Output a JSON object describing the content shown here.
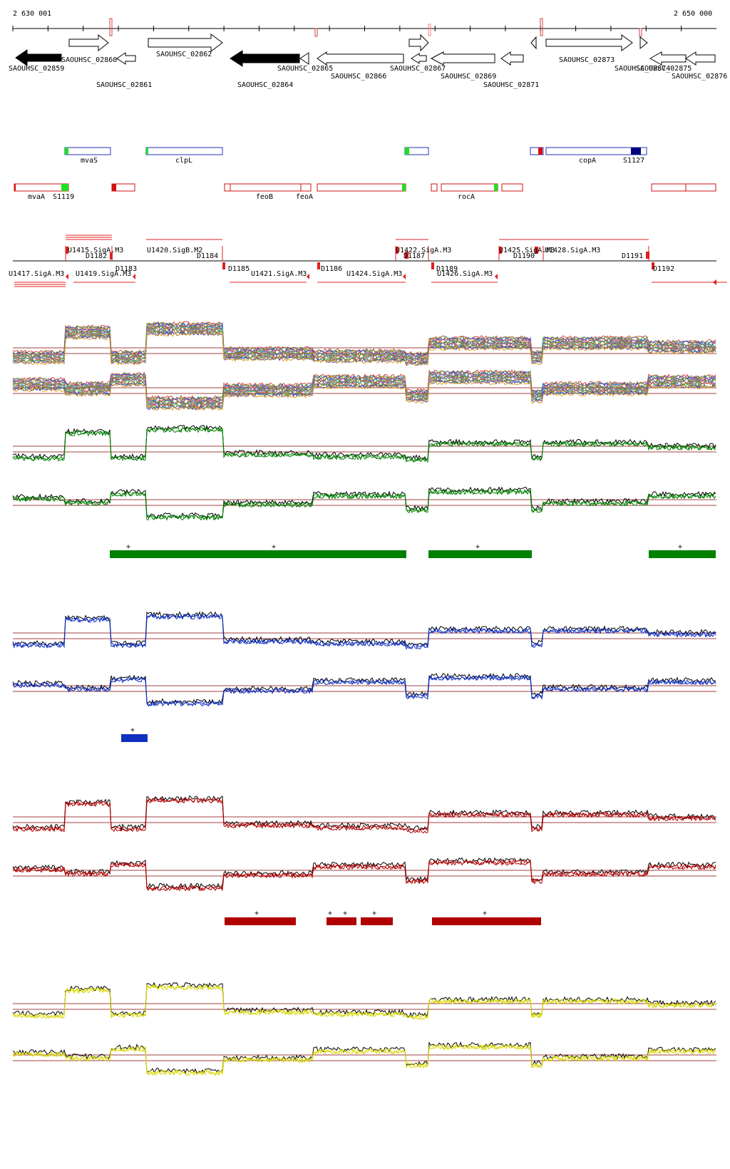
{
  "ruler": {
    "start_label": "2 630 001",
    "end_label": "2 650 000"
  },
  "genes_top": [
    "SAOUHSC_02860",
    "SAOUHSC_02862",
    "SAOUHSC_02865",
    "SAOUHSC_02867",
    "SAOUHSC_02873",
    "SAOUHSC_02875"
  ],
  "genes_mid": [
    "SAOUHSC_02859",
    "SAOUHSC_02866",
    "SAOUHSC_02869",
    "SAOUHSC_02874",
    "SAOUHSC_02876"
  ],
  "genes_low": [
    "SAOUHSC_02861",
    "SAOUHSC_02864",
    "SAOUHSC_02871"
  ],
  "features_plus": [
    "mvaS",
    "clpL",
    "copA",
    "S1127"
  ],
  "features_minus": [
    "mvaA",
    "S1119",
    "feoB",
    "feoA",
    "rocA"
  ],
  "tu_top": [
    "U1415.SigA.M3",
    "U1420.SigB.M2",
    "U1422.SigA.M3",
    "U1425.SigA.M3",
    "U1428.SigA.M3"
  ],
  "tu_bottom": [
    "U1417.SigA.M3",
    "U1419.SigA.M3",
    "U1421.SigA.M3",
    "U1424.SigA.M3",
    "U1426.SigA.M3"
  ],
  "d_labels": [
    "D1182",
    "D1183",
    "D1184",
    "D1185",
    "D1186",
    "D1187",
    "D1189",
    "D1190",
    "D1191",
    "D1192"
  ],
  "plus_marker": "+",
  "colors": {
    "black": "#000000",
    "green": "#008000",
    "blue": "#1030c0",
    "red": "#b00000",
    "yellow": "#d8d800",
    "ref_line": "#a04040",
    "feature_plus": "#2030c0",
    "feature_minus": "#d01010",
    "start_green": "#20e020"
  }
}
